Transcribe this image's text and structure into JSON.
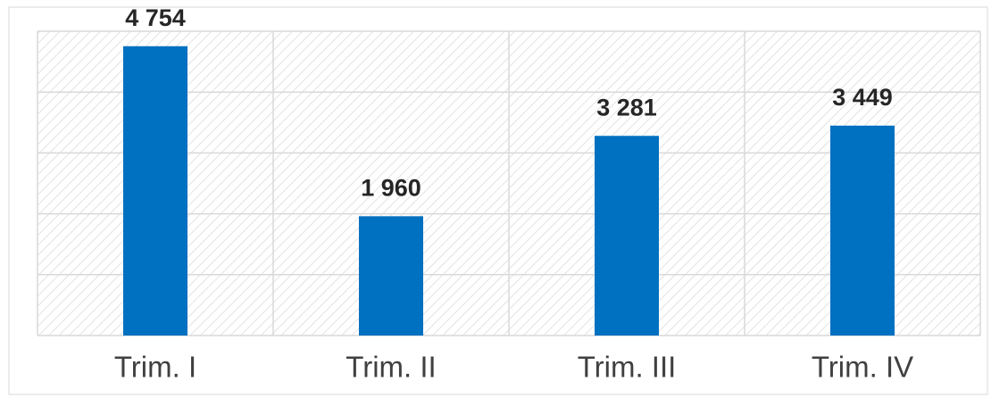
{
  "chart_data": {
    "type": "bar",
    "categories": [
      "Trim. I",
      "Trim. II",
      "Trim. III",
      "Trim. IV"
    ],
    "values": [
      4754,
      1960,
      3281,
      3449
    ],
    "value_labels": [
      "4 754",
      "1 960",
      "3 281",
      "3 449"
    ],
    "color": "#0070c0",
    "ylim": [
      0,
      5000
    ],
    "yticks": [
      0,
      1000,
      2000,
      3000,
      4000,
      5000
    ],
    "grid": true
  }
}
